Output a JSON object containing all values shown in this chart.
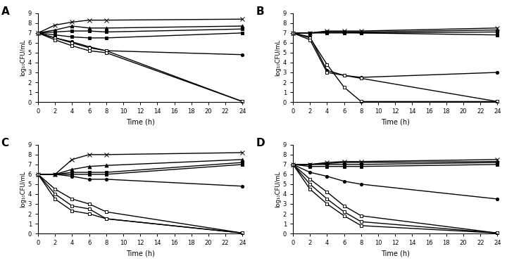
{
  "time": [
    0,
    2,
    4,
    6,
    8,
    24
  ],
  "panel_A": {
    "label": "A",
    "ylim": [
      0,
      9
    ],
    "yticks": [
      0,
      1,
      2,
      3,
      4,
      5,
      6,
      7,
      8,
      9
    ],
    "ylabel": "log₁₀CFU/mL",
    "series": [
      {
        "y": [
          7,
          7.8,
          8.1,
          8.3,
          8.3,
          8.4
        ],
        "marker": "x",
        "lw": 1.0,
        "mfc": "k",
        "ms": 4
      },
      {
        "y": [
          7,
          7.3,
          7.7,
          7.5,
          7.5,
          7.7
        ],
        "marker": "^",
        "lw": 1.0,
        "mfc": "k",
        "ms": 3.5
      },
      {
        "y": [
          7,
          7.1,
          7.2,
          7.2,
          7.1,
          7.4
        ],
        "marker": "s",
        "lw": 1.0,
        "mfc": "k",
        "ms": 3
      },
      {
        "y": [
          7,
          6.8,
          6.6,
          6.5,
          6.5,
          7.0
        ],
        "marker": "s",
        "lw": 1.0,
        "mfc": "k",
        "ms": 3
      },
      {
        "y": [
          7,
          6.5,
          6.1,
          5.6,
          5.2,
          4.8
        ],
        "marker": "o",
        "lw": 1.0,
        "mfc": "k",
        "ms": 3
      },
      {
        "y": [
          7,
          6.5,
          6.0,
          5.5,
          5.2,
          0.05
        ],
        "marker": "s",
        "lw": 1.0,
        "mfc": "white",
        "ms": 3
      },
      {
        "y": [
          7,
          6.3,
          5.7,
          5.2,
          5.0,
          0.05
        ],
        "marker": "s",
        "lw": 1.0,
        "mfc": "white",
        "ms": 3
      }
    ]
  },
  "panel_B": {
    "label": "B",
    "ylim": [
      0,
      9
    ],
    "yticks": [
      0,
      1,
      2,
      3,
      4,
      5,
      6,
      7,
      8,
      9
    ],
    "ylabel": "log₁₀CFU/mL",
    "series": [
      {
        "y": [
          7,
          7.0,
          7.2,
          7.2,
          7.2,
          7.5
        ],
        "marker": "x",
        "lw": 1.0,
        "mfc": "k",
        "ms": 4
      },
      {
        "y": [
          7,
          7.0,
          7.1,
          7.1,
          7.1,
          7.3
        ],
        "marker": "^",
        "lw": 1.0,
        "mfc": "k",
        "ms": 3.5
      },
      {
        "y": [
          7,
          7.0,
          7.1,
          7.1,
          7.0,
          7.1
        ],
        "marker": "s",
        "lw": 1.0,
        "mfc": "k",
        "ms": 3
      },
      {
        "y": [
          7,
          7.0,
          7.0,
          7.0,
          7.0,
          6.8
        ],
        "marker": "s",
        "lw": 1.0,
        "mfc": "k",
        "ms": 3
      },
      {
        "y": [
          7,
          6.6,
          3.2,
          2.7,
          2.5,
          3.0
        ],
        "marker": "o",
        "lw": 1.0,
        "mfc": "k",
        "ms": 3
      },
      {
        "y": [
          7,
          6.5,
          3.8,
          1.5,
          0.05,
          0.05
        ],
        "marker": "s",
        "lw": 1.0,
        "mfc": "white",
        "ms": 3
      },
      {
        "y": [
          7,
          6.3,
          3.0,
          2.7,
          2.4,
          0.05
        ],
        "marker": "s",
        "lw": 1.0,
        "mfc": "white",
        "ms": 3
      }
    ]
  },
  "panel_C": {
    "label": "C",
    "ylim": [
      0,
      9
    ],
    "yticks": [
      0,
      1,
      2,
      3,
      4,
      5,
      6,
      7,
      8,
      9
    ],
    "ylabel": "log₁₀CFU/mL",
    "series": [
      {
        "y": [
          6,
          6.0,
          7.5,
          8.0,
          8.0,
          8.2
        ],
        "marker": "x",
        "lw": 1.0,
        "mfc": "k",
        "ms": 4
      },
      {
        "y": [
          6,
          6.0,
          6.5,
          6.8,
          6.9,
          7.5
        ],
        "marker": "^",
        "lw": 1.0,
        "mfc": "k",
        "ms": 3.5
      },
      {
        "y": [
          6,
          6.0,
          6.2,
          6.2,
          6.2,
          7.2
        ],
        "marker": "s",
        "lw": 1.0,
        "mfc": "k",
        "ms": 3
      },
      {
        "y": [
          6,
          6.0,
          6.0,
          6.0,
          6.0,
          7.0
        ],
        "marker": "s",
        "lw": 1.0,
        "mfc": "k",
        "ms": 3
      },
      {
        "y": [
          6,
          6.0,
          5.8,
          5.5,
          5.5,
          4.8
        ],
        "marker": "o",
        "lw": 1.0,
        "mfc": "k",
        "ms": 3
      },
      {
        "y": [
          6,
          4.5,
          3.5,
          3.0,
          2.2,
          0.05
        ],
        "marker": "s",
        "lw": 1.0,
        "mfc": "white",
        "ms": 3
      },
      {
        "y": [
          6,
          4.0,
          2.8,
          2.5,
          1.5,
          0.05
        ],
        "marker": "s",
        "lw": 1.0,
        "mfc": "white",
        "ms": 3
      },
      {
        "y": [
          6,
          3.5,
          2.3,
          2.0,
          1.5,
          0.05
        ],
        "marker": "s",
        "lw": 1.0,
        "mfc": "white",
        "ms": 3
      }
    ]
  },
  "panel_D": {
    "label": "D",
    "ylim": [
      0,
      9
    ],
    "yticks": [
      0,
      1,
      2,
      3,
      4,
      5,
      6,
      7,
      8,
      9
    ],
    "ylabel": "log₁₀CFU/mL",
    "series": [
      {
        "y": [
          7,
          7.0,
          7.2,
          7.3,
          7.3,
          7.5
        ],
        "marker": "x",
        "lw": 1.0,
        "mfc": "k",
        "ms": 4
      },
      {
        "y": [
          7,
          7.0,
          7.1,
          7.2,
          7.2,
          7.3
        ],
        "marker": "^",
        "lw": 1.0,
        "mfc": "k",
        "ms": 3.5
      },
      {
        "y": [
          7,
          7.0,
          7.0,
          7.0,
          7.0,
          7.2
        ],
        "marker": "s",
        "lw": 1.0,
        "mfc": "k",
        "ms": 3
      },
      {
        "y": [
          7,
          6.8,
          6.8,
          6.8,
          6.8,
          7.0
        ],
        "marker": "s",
        "lw": 1.0,
        "mfc": "k",
        "ms": 3
      },
      {
        "y": [
          7,
          6.2,
          5.8,
          5.3,
          5.0,
          3.5
        ],
        "marker": "o",
        "lw": 1.0,
        "mfc": "k",
        "ms": 3
      },
      {
        "y": [
          7,
          5.5,
          4.2,
          2.8,
          1.8,
          0.05
        ],
        "marker": "s",
        "lw": 1.0,
        "mfc": "white",
        "ms": 3
      },
      {
        "y": [
          7,
          5.0,
          3.5,
          2.2,
          1.2,
          0.05
        ],
        "marker": "s",
        "lw": 1.0,
        "mfc": "white",
        "ms": 3
      },
      {
        "y": [
          7,
          4.5,
          3.0,
          1.8,
          0.8,
          0.05
        ],
        "marker": "s",
        "lw": 1.0,
        "mfc": "white",
        "ms": 3
      }
    ]
  },
  "xlabel": "Time (h)",
  "xticks": [
    0,
    2,
    4,
    6,
    8,
    10,
    12,
    14,
    16,
    18,
    20,
    22,
    24
  ],
  "color": "black"
}
